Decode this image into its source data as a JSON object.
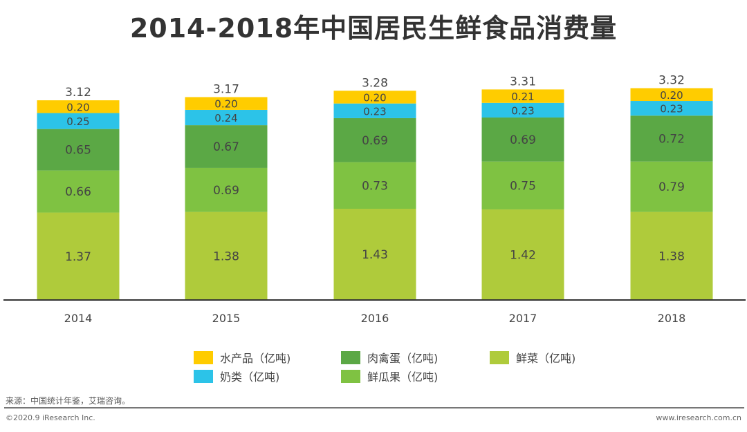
{
  "chart_data": {
    "type": "bar",
    "stacked": true,
    "title": "2014-2018年中国居民生鲜食品消费量",
    "categories": [
      "2014",
      "2015",
      "2016",
      "2017",
      "2018"
    ],
    "totals": [
      "3.12",
      "3.17",
      "3.28",
      "3.31",
      "3.32"
    ],
    "series": [
      {
        "name": "鲜菜（亿吨)",
        "color": "#AFCB3B",
        "values": [
          1.37,
          1.38,
          1.43,
          1.42,
          1.38
        ]
      },
      {
        "name": "鲜瓜果（亿吨)",
        "color": "#7FC242",
        "values": [
          0.66,
          0.69,
          0.73,
          0.75,
          0.79
        ]
      },
      {
        "name": "肉禽蛋（亿吨)",
        "color": "#5BA845",
        "values": [
          0.65,
          0.67,
          0.69,
          0.69,
          0.72
        ]
      },
      {
        "name": "奶类（亿吨)",
        "color": "#2CC3E8",
        "values": [
          0.25,
          0.24,
          0.23,
          0.23,
          0.23
        ]
      },
      {
        "name": "水产品（亿吨)",
        "color": "#FFCC00",
        "values": [
          0.2,
          0.2,
          0.2,
          0.21,
          0.2
        ]
      }
    ],
    "legend_position": "bottom",
    "grid": false
  },
  "footer": {
    "source": "来源：中国统计年鉴，艾瑞咨询。",
    "copyright": "©2020.9 iResearch Inc.",
    "website": "www.iresearch.com.cn"
  }
}
